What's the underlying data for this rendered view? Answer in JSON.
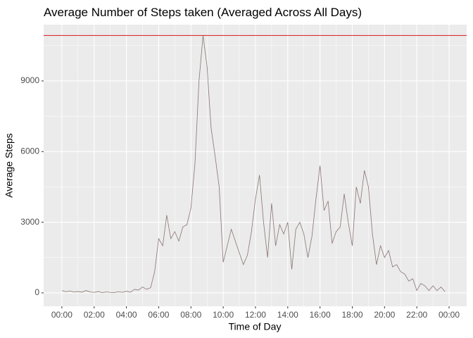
{
  "chart_data": {
    "type": "line",
    "title": "Average Number of Steps taken (Averaged Across All Days)",
    "xlabel": "Time of Day",
    "ylabel": "Average Steps",
    "x": [
      0,
      0.25,
      0.5,
      0.75,
      1,
      1.25,
      1.5,
      1.75,
      2,
      2.25,
      2.5,
      2.75,
      3,
      3.25,
      3.5,
      3.75,
      4,
      4.25,
      4.5,
      4.75,
      5,
      5.25,
      5.5,
      5.75,
      6,
      6.25,
      6.5,
      6.75,
      7,
      7.25,
      7.5,
      7.75,
      8,
      8.25,
      8.5,
      8.75,
      9,
      9.25,
      9.5,
      9.75,
      10,
      10.25,
      10.5,
      10.75,
      11,
      11.25,
      11.5,
      11.75,
      12,
      12.25,
      12.5,
      12.75,
      13,
      13.25,
      13.5,
      13.75,
      14,
      14.25,
      14.5,
      14.75,
      15,
      15.25,
      15.5,
      15.75,
      16,
      16.25,
      16.5,
      16.75,
      17,
      17.25,
      17.5,
      17.75,
      18,
      18.25,
      18.5,
      18.75,
      19,
      19.25,
      19.5,
      19.75,
      20,
      20.25,
      20.5,
      20.75,
      21,
      21.25,
      21.5,
      21.75,
      22,
      22.25,
      22.5,
      22.75,
      23,
      23.25,
      23.5,
      23.75
    ],
    "series": [
      {
        "name": "Average Steps",
        "color": "#8c7272",
        "values": [
          100,
          50,
          80,
          40,
          60,
          30,
          100,
          40,
          20,
          60,
          10,
          40,
          20,
          10,
          50,
          20,
          70,
          30,
          150,
          120,
          250,
          150,
          220,
          900,
          2300,
          2000,
          3300,
          2300,
          2600,
          2200,
          2800,
          2900,
          3600,
          5500,
          9000,
          10930,
          9600,
          7000,
          5800,
          4500,
          1300,
          2000,
          2700,
          2200,
          1700,
          1200,
          1600,
          2600,
          4000,
          5000,
          3000,
          1500,
          3800,
          2000,
          2900,
          2500,
          3000,
          1000,
          2700,
          3000,
          2500,
          1500,
          2400,
          4000,
          5400,
          3500,
          3900,
          2100,
          2600,
          2800,
          4200,
          3000,
          2000,
          4500,
          3800,
          5200,
          4500,
          2500,
          1200,
          2000,
          1500,
          1800,
          1100,
          1200,
          900,
          800,
          500,
          600,
          100,
          400,
          300,
          100,
          300,
          100,
          250,
          50
        ]
      }
    ],
    "hline": 10930,
    "hline_color": "#d7191c",
    "xlim": [
      -1.13,
      25.09
    ],
    "xticks": [
      {
        "value": 0,
        "label": "00:00"
      },
      {
        "value": 2,
        "label": "02:00"
      },
      {
        "value": 4,
        "label": "04:00"
      },
      {
        "value": 6,
        "label": "06:00"
      },
      {
        "value": 8,
        "label": "08:00"
      },
      {
        "value": 10,
        "label": "10:00"
      },
      {
        "value": 12,
        "label": "12:00"
      },
      {
        "value": 14,
        "label": "14:00"
      },
      {
        "value": 16,
        "label": "16:00"
      },
      {
        "value": 18,
        "label": "18:00"
      },
      {
        "value": 20,
        "label": "20:00"
      },
      {
        "value": 22,
        "label": "22:00"
      },
      {
        "value": 24,
        "label": "00:00"
      }
    ],
    "ylim": [
      -570,
      11390
    ],
    "yticks": [
      0,
      3000,
      6000,
      9000
    ],
    "grid": true
  }
}
